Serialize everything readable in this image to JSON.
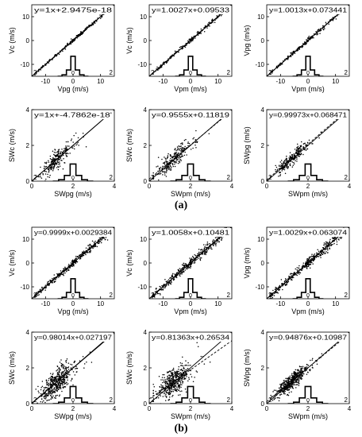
{
  "figure": {
    "panel_labels": [
      "(a)",
      "(b)"
    ]
  },
  "chart_data": [
    {
      "type": "scatter",
      "group": "a",
      "row": 0,
      "col": 0,
      "equation": "y=1x+2.9475e-18",
      "xlabel": "Vpg (m/s)",
      "ylabel": "Vc (m/s)",
      "xlim": [
        -15,
        15
      ],
      "ylim": [
        -15,
        15
      ],
      "xticks": [
        -10,
        0,
        10
      ],
      "yticks": [
        -10,
        0,
        10
      ],
      "xtick_labels": [
        "-10",
        "0",
        "10"
      ],
      "ytick_labels": [
        "-10",
        "0",
        "10"
      ],
      "corner_labels": [
        "2",
        "2"
      ],
      "hist_label": "0",
      "spread": 0.015,
      "nPoints": 220,
      "fit": {
        "slope": 1.0,
        "intercept": 0.0
      },
      "dashed": false,
      "hist": {
        "center": 0,
        "bin_width": 1.6,
        "heights": [
          0.05,
          0.22,
          0.7,
          0.22,
          0.05
        ]
      }
    },
    {
      "type": "scatter",
      "group": "a",
      "row": 0,
      "col": 1,
      "equation": "y=1.0027x+0.09533",
      "xlabel": "Vpm (m/s)",
      "ylabel": "Vc (m/s)",
      "xlim": [
        -15,
        15
      ],
      "ylim": [
        -15,
        15
      ],
      "xticks": [
        -10,
        0,
        10
      ],
      "yticks": [
        -10,
        0,
        10
      ],
      "xtick_labels": [
        "-10",
        "0",
        "10"
      ],
      "ytick_labels": [
        "-10",
        "0",
        "10"
      ],
      "corner_labels": [
        "2",
        "2"
      ],
      "hist_label": "0",
      "spread": 0.02,
      "nPoints": 220,
      "fit": {
        "slope": 1.0027,
        "intercept": 0.09533
      },
      "dashed": false,
      "hist": {
        "center": 0,
        "bin_width": 1.6,
        "heights": [
          0.05,
          0.22,
          0.7,
          0.22,
          0.05
        ]
      }
    },
    {
      "type": "scatter",
      "group": "a",
      "row": 0,
      "col": 2,
      "equation": "y=1.0013x+0.073441",
      "xlabel": "Vpm (m/s)",
      "ylabel": "Vpg (m/s)",
      "xlim": [
        -15,
        15
      ],
      "ylim": [
        -15,
        15
      ],
      "xticks": [
        -10,
        0,
        10
      ],
      "yticks": [
        -10,
        0,
        10
      ],
      "xtick_labels": [
        "-10",
        "0",
        "10"
      ],
      "ytick_labels": [
        "-10",
        "0",
        "10"
      ],
      "corner_labels": [
        "2",
        "2"
      ],
      "hist_label": "0",
      "spread": 0.02,
      "nPoints": 220,
      "fit": {
        "slope": 1.0013,
        "intercept": 0.073441
      },
      "dashed": false,
      "hist": {
        "center": 0,
        "bin_width": 1.6,
        "heights": [
          0.05,
          0.22,
          0.7,
          0.22,
          0.05
        ]
      }
    },
    {
      "type": "scatter",
      "group": "a",
      "row": 1,
      "col": 0,
      "equation": "y=1x+-4.7862e-18'",
      "xlabel": "SWpg (m/s)",
      "ylabel": "SWc (m/s)",
      "xlim": [
        0,
        4
      ],
      "ylim": [
        0,
        4
      ],
      "xticks": [
        0,
        2,
        4
      ],
      "yticks": [
        0,
        2,
        4
      ],
      "xtick_labels": [
        "0",
        "2",
        "4"
      ],
      "ytick_labels": [
        "0",
        "2",
        "4"
      ],
      "corner_labels": [
        "2",
        "2"
      ],
      "hist_label": "0",
      "spread": 0.09,
      "nPoints": 260,
      "fit": {
        "slope": 1.0,
        "intercept": 0.0
      },
      "dashed": false,
      "hist": {
        "center": 2,
        "bin_width": 0.28,
        "heights": [
          0.05,
          0.2,
          0.6,
          0.2,
          0.05
        ]
      }
    },
    {
      "type": "scatter",
      "group": "a",
      "row": 1,
      "col": 1,
      "equation": "y=0.9555x+0.11819",
      "xlabel": "SWpm (m/s)",
      "ylabel": "SWc (m/s)",
      "xlim": [
        0,
        4
      ],
      "ylim": [
        0,
        4
      ],
      "xticks": [
        0,
        2,
        4
      ],
      "yticks": [
        0,
        2,
        4
      ],
      "xtick_labels": [
        "0",
        "2",
        "4"
      ],
      "ytick_labels": [
        "0",
        "2",
        "4"
      ],
      "corner_labels": [
        "2",
        "2"
      ],
      "hist_label": "0",
      "spread": 0.09,
      "nPoints": 260,
      "fit": {
        "slope": 0.9555,
        "intercept": 0.11819
      },
      "dashed": true,
      "hist": {
        "center": 2,
        "bin_width": 0.28,
        "heights": [
          0.05,
          0.2,
          0.6,
          0.2,
          0.05
        ]
      }
    },
    {
      "type": "scatter",
      "group": "a",
      "row": 1,
      "col": 2,
      "equation": "y=0.99973x+0.068471",
      "xlabel": "SWpm (m/s)",
      "ylabel": "SWpg (m/s)",
      "xlim": [
        0,
        4
      ],
      "ylim": [
        0,
        4
      ],
      "xticks": [
        0,
        2,
        4
      ],
      "yticks": [
        0,
        2,
        4
      ],
      "xtick_labels": [
        "0",
        "2",
        "4"
      ],
      "ytick_labels": [
        "0",
        "2",
        "4"
      ],
      "corner_labels": [
        "2",
        "2"
      ],
      "hist_label": "0",
      "spread": 0.06,
      "nPoints": 260,
      "fit": {
        "slope": 0.99973,
        "intercept": 0.068471
      },
      "dashed": true,
      "hist": {
        "center": 2,
        "bin_width": 0.28,
        "heights": [
          0.05,
          0.2,
          0.6,
          0.2,
          0.05
        ]
      }
    },
    {
      "type": "scatter",
      "group": "b",
      "row": 0,
      "col": 0,
      "equation": "y=0.9999x+0.0029384",
      "xlabel": "Vpg (m/s)",
      "ylabel": "Vc (m/s)",
      "xlim": [
        -15,
        15
      ],
      "ylim": [
        -15,
        15
      ],
      "xticks": [
        -10,
        0,
        10
      ],
      "yticks": [
        -10,
        0,
        10
      ],
      "xtick_labels": [
        "-10",
        "0",
        "10"
      ],
      "ytick_labels": [
        "-10",
        "0",
        "10"
      ],
      "corner_labels": [
        "2",
        "2"
      ],
      "hist_label": "0",
      "spread": 0.03,
      "nPoints": 420,
      "fit": {
        "slope": 0.9999,
        "intercept": 0.0029384
      },
      "dashed": false,
      "hist": {
        "center": 0,
        "bin_width": 1.6,
        "heights": [
          0.05,
          0.22,
          0.7,
          0.22,
          0.05
        ]
      }
    },
    {
      "type": "scatter",
      "group": "b",
      "row": 0,
      "col": 1,
      "equation": "y=1.0058x+0.10481",
      "xlabel": "Vpm (m/s)",
      "ylabel": "Vc (m/s)",
      "xlim": [
        -15,
        15
      ],
      "ylim": [
        -15,
        15
      ],
      "xticks": [
        -10,
        0,
        10
      ],
      "yticks": [
        -10,
        0,
        10
      ],
      "xtick_labels": [
        "-10",
        "0",
        "10"
      ],
      "ytick_labels": [
        "-10",
        "0",
        "10"
      ],
      "corner_labels": [
        "2",
        "2"
      ],
      "hist_label": "0",
      "spread": 0.04,
      "nPoints": 420,
      "fit": {
        "slope": 1.0058,
        "intercept": 0.10481
      },
      "dashed": false,
      "hist": {
        "center": 0,
        "bin_width": 1.6,
        "heights": [
          0.05,
          0.22,
          0.7,
          0.22,
          0.05
        ]
      }
    },
    {
      "type": "scatter",
      "group": "b",
      "row": 0,
      "col": 2,
      "equation": "y=1.0029x+0.063074",
      "xlabel": "Vpm (m/s)",
      "ylabel": "Vpg (m/s)",
      "xlim": [
        -15,
        15
      ],
      "ylim": [
        -15,
        15
      ],
      "xticks": [
        -10,
        0,
        10
      ],
      "yticks": [
        -10,
        0,
        10
      ],
      "xtick_labels": [
        "-10",
        "0",
        "10"
      ],
      "ytick_labels": [
        "-10",
        "0",
        "10"
      ],
      "corner_labels": [
        "2",
        "2"
      ],
      "hist_label": "0",
      "spread": 0.04,
      "nPoints": 420,
      "fit": {
        "slope": 1.0029,
        "intercept": 0.063074
      },
      "dashed": false,
      "hist": {
        "center": 0,
        "bin_width": 1.6,
        "heights": [
          0.05,
          0.22,
          0.7,
          0.22,
          0.05
        ]
      }
    },
    {
      "type": "scatter",
      "group": "b",
      "row": 1,
      "col": 0,
      "equation": "y=0.98014x+0.027197",
      "xlabel": "SWpg (m/s)",
      "ylabel": "SWc (m/s)",
      "xlim": [
        0,
        4
      ],
      "ylim": [
        0,
        4
      ],
      "xticks": [
        0,
        2,
        4
      ],
      "yticks": [
        0,
        2,
        4
      ],
      "xtick_labels": [
        "0",
        "2",
        "4"
      ],
      "ytick_labels": [
        "0",
        "2",
        "4"
      ],
      "corner_labels": [
        "2",
        "2"
      ],
      "hist_label": "0",
      "spread": 0.13,
      "nPoints": 480,
      "fit": {
        "slope": 0.98014,
        "intercept": 0.027197
      },
      "dashed": false,
      "hist": {
        "center": 2,
        "bin_width": 0.28,
        "heights": [
          0.05,
          0.2,
          0.6,
          0.2,
          0.05
        ]
      }
    },
    {
      "type": "scatter",
      "group": "b",
      "row": 1,
      "col": 1,
      "equation": "y=0.81363x+0.26534",
      "xlabel": "SWpm (m/s)",
      "ylabel": "SWc (m/s)",
      "xlim": [
        0,
        4
      ],
      "ylim": [
        0,
        4
      ],
      "xticks": [
        0,
        2,
        4
      ],
      "yticks": [
        0,
        2,
        4
      ],
      "xtick_labels": [
        "0",
        "2",
        "4"
      ],
      "ytick_labels": [
        "0",
        "2",
        "4"
      ],
      "corner_labels": [
        "2",
        "2"
      ],
      "hist_label": "0",
      "spread": 0.13,
      "nPoints": 480,
      "fit": {
        "slope": 0.81363,
        "intercept": 0.26534
      },
      "dashed": true,
      "hist": {
        "center": 2,
        "bin_width": 0.28,
        "heights": [
          0.05,
          0.2,
          0.6,
          0.2,
          0.05
        ]
      }
    },
    {
      "type": "scatter",
      "group": "b",
      "row": 1,
      "col": 2,
      "equation": "y=0.94876x+0.10987",
      "xlabel": "SWpm (m/s)",
      "ylabel": "SWpg (m/s)",
      "xlim": [
        0,
        4
      ],
      "ylim": [
        0,
        4
      ],
      "xticks": [
        0,
        2,
        4
      ],
      "yticks": [
        0,
        2,
        4
      ],
      "xtick_labels": [
        "0",
        "2",
        "4"
      ],
      "ytick_labels": [
        "0",
        "2",
        "4"
      ],
      "corner_labels": [
        "2",
        "2"
      ],
      "hist_label": "0",
      "spread": 0.07,
      "nPoints": 480,
      "fit": {
        "slope": 0.94876,
        "intercept": 0.10987
      },
      "dashed": true,
      "hist": {
        "center": 2,
        "bin_width": 0.28,
        "heights": [
          0.05,
          0.2,
          0.6,
          0.2,
          0.05
        ]
      }
    }
  ]
}
